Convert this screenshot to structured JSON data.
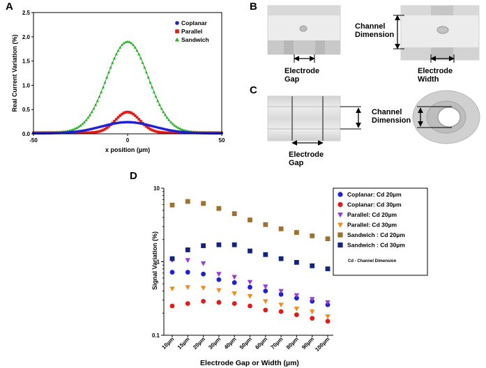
{
  "panel_labels": {
    "a": "A",
    "b": "B",
    "c": "C",
    "d": "D"
  },
  "panel_b": {
    "channel_dimension": "Channel\nDimension",
    "electrode_gap": "Electrode\nGap",
    "electrode_width": "Electrode\nWidth"
  },
  "panel_c": {
    "channel_dimension": "Channel\nDimension",
    "electrode_gap": "Electrode\nGap"
  },
  "colors": {
    "blue": "#1f1fd6",
    "red": "#e21a1a",
    "green": "#22b022",
    "purple": "#9a3ad6",
    "orange": "#f08c1e",
    "brown": "#a0702e",
    "navy": "#15237a"
  },
  "chart_data": [
    {
      "type": "line",
      "panel": "A",
      "title": "",
      "xlabel": "x position (µm)",
      "ylabel": "Real Current Variation (%)",
      "xlim": [
        -50,
        50
      ],
      "ylim": [
        0,
        2.5
      ],
      "xticks": [
        "-50",
        "0",
        "50"
      ],
      "yticks": [
        "0.0",
        "0.5",
        "1.0",
        "1.5",
        "2.0",
        "2.5"
      ],
      "legend_position": "top-right",
      "series": [
        {
          "name": "Coplanar",
          "marker": "circle",
          "color": "#1f1fd6",
          "peak": 0.24,
          "sigma": 14,
          "baseline": 0.01
        },
        {
          "name": "Parallel",
          "marker": "square",
          "color": "#e21a1a",
          "peak": 0.45,
          "sigma": 6.5,
          "baseline": 0.02
        },
        {
          "name": "Sandwich",
          "marker": "triangle",
          "color": "#22b022",
          "peak": 1.9,
          "sigma": 11,
          "baseline": 0.03
        }
      ]
    },
    {
      "type": "scatter",
      "panel": "D",
      "title": "",
      "xlabel": "Electrode Gap or Width (µm)",
      "ylabel": "Signal Variation (%)",
      "yscale": "log",
      "ylim": [
        0.1,
        10
      ],
      "yticks": [
        "0.1",
        "1",
        "10"
      ],
      "categories": [
        "10µm",
        "15µm",
        "20µm",
        "30µm",
        "40µm",
        "50µm",
        "60µm",
        "70µm",
        "80µm",
        "90µm",
        "100µm"
      ],
      "legend_position": "right",
      "legend_note": "Cd - Channel Dimension",
      "series": [
        {
          "name": "Coplanar: Cd 20µm",
          "marker": "circle",
          "color": "#1f1fd6",
          "values": [
            0.72,
            0.72,
            0.68,
            0.57,
            0.52,
            0.45,
            0.4,
            0.36,
            0.32,
            0.29,
            0.26
          ]
        },
        {
          "name": "Coplanar: Cd 30µm",
          "marker": "circle",
          "color": "#e21a1a",
          "values": [
            0.25,
            0.27,
            0.29,
            0.28,
            0.27,
            0.25,
            0.22,
            0.21,
            0.19,
            0.17,
            0.155
          ]
        },
        {
          "name": "Parallel: Cd 20µm",
          "marker": "triangle-down",
          "color": "#9a3ad6",
          "values": [
            1.05,
            1.05,
            0.95,
            0.68,
            0.62,
            0.53,
            0.46,
            0.4,
            0.35,
            0.31,
            0.28
          ]
        },
        {
          "name": "Parallel: Cd 30µm",
          "marker": "triangle-down",
          "color": "#f08c1e",
          "values": [
            0.43,
            0.45,
            0.44,
            0.41,
            0.37,
            0.34,
            0.29,
            0.26,
            0.23,
            0.21,
            0.18
          ]
        },
        {
          "name": "Sandwich : Cd 20µm",
          "marker": "square",
          "color": "#a0702e",
          "values": [
            5.9,
            6.6,
            6.2,
            5.3,
            4.5,
            3.7,
            3.2,
            2.8,
            2.5,
            2.25,
            2.05
          ]
        },
        {
          "name": "Sandwich : Cd 30µm",
          "marker": "square",
          "color": "#15237a",
          "values": [
            1.1,
            1.45,
            1.65,
            1.7,
            1.7,
            1.4,
            1.25,
            1.1,
            0.98,
            0.88,
            0.8
          ]
        }
      ]
    }
  ]
}
